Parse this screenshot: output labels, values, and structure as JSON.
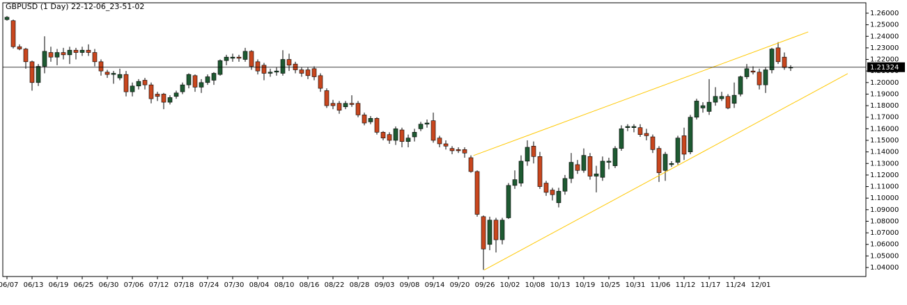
{
  "chart_data": {
    "type": "candlestick",
    "title": "GBPUSD (1 Day) 22-12-06_23-51-02",
    "categories": [
      "06/07",
      null,
      null,
      null,
      "06/13",
      null,
      null,
      null,
      "06/19",
      null,
      null,
      null,
      "06/25",
      null,
      null,
      null,
      "06/30",
      null,
      null,
      null,
      "07/06",
      null,
      null,
      null,
      "07/12",
      null,
      null,
      null,
      "07/18",
      null,
      null,
      null,
      "07/24",
      null,
      null,
      null,
      "07/30",
      null,
      null,
      null,
      "08/04",
      null,
      null,
      null,
      "08/10",
      null,
      null,
      null,
      "08/16",
      null,
      null,
      null,
      "08/22",
      null,
      null,
      null,
      "08/28",
      null,
      null,
      null,
      "09/03",
      null,
      null,
      null,
      "09/08",
      null,
      null,
      null,
      "09/14",
      null,
      null,
      null,
      "09/20",
      null,
      null,
      null,
      "09/26",
      null,
      null,
      null,
      "10/02",
      null,
      null,
      null,
      "10/08",
      null,
      null,
      null,
      "10/13",
      null,
      null,
      null,
      "10/19",
      null,
      null,
      null,
      "10/25",
      null,
      null,
      null,
      "10/31",
      null,
      null,
      null,
      "11/06",
      null,
      null,
      null,
      "11/12",
      null,
      null,
      null,
      "11/17",
      null,
      null,
      null,
      "11/24",
      null,
      null,
      null,
      "12/01",
      null,
      null,
      null,
      null,
      null
    ],
    "open": [
      1.2545,
      1.2535,
      1.231,
      1.229,
      1.218,
      1.2,
      1.214,
      1.226,
      1.222,
      1.226,
      1.224,
      1.228,
      1.226,
      1.228,
      1.226,
      1.218,
      1.209,
      1.207,
      1.204,
      1.207,
      1.192,
      1.197,
      1.202,
      1.198,
      1.19,
      1.19,
      1.183,
      1.188,
      1.192,
      1.198,
      1.206,
      1.196,
      1.2,
      1.202,
      1.207,
      1.219,
      1.221,
      1.222,
      1.22,
      1.227,
      1.218,
      1.215,
      1.208,
      1.209,
      1.208,
      1.22,
      1.216,
      1.211,
      1.211,
      1.212,
      1.206,
      1.193,
      1.182,
      1.182,
      1.179,
      1.182,
      1.182,
      1.172,
      1.166,
      1.169,
      1.157,
      1.155,
      1.15,
      1.159,
      1.149,
      1.153,
      1.16,
      1.164,
      1.167,
      1.152,
      1.147,
      1.143,
      1.142,
      1.142,
      1.135,
      1.123,
      1.084,
      1.06,
      1.081,
      1.064,
      1.083,
      1.111,
      1.113,
      1.132,
      1.145,
      1.136,
      1.113,
      1.107,
      1.096,
      1.106,
      1.117,
      1.129,
      1.124,
      1.136,
      1.119,
      1.118,
      1.131,
      1.128,
      1.143,
      1.161,
      1.161,
      1.161,
      1.156,
      1.153,
      1.143,
      1.124,
      1.129,
      1.131,
      1.154,
      1.14,
      1.17,
      1.178,
      1.175,
      1.183,
      1.186,
      1.188,
      1.182,
      1.19,
      1.205,
      1.21,
      1.209,
      1.198,
      1.211,
      1.23,
      1.222,
      1.213
    ],
    "high": [
      1.2575,
      1.2545,
      1.233,
      1.23,
      1.219,
      1.216,
      1.24,
      1.231,
      1.229,
      1.23,
      1.231,
      1.23,
      1.231,
      1.233,
      1.229,
      1.22,
      1.211,
      1.21,
      1.212,
      1.21,
      1.2,
      1.203,
      1.204,
      1.2,
      1.192,
      1.191,
      1.189,
      1.193,
      1.2,
      1.208,
      1.207,
      1.203,
      1.207,
      1.209,
      1.22,
      1.224,
      1.225,
      1.224,
      1.23,
      1.228,
      1.22,
      1.217,
      1.212,
      1.213,
      1.228,
      1.225,
      1.218,
      1.213,
      1.213,
      1.214,
      1.208,
      1.195,
      1.185,
      1.184,
      1.184,
      1.189,
      1.184,
      1.174,
      1.171,
      1.17,
      1.158,
      1.157,
      1.162,
      1.161,
      1.155,
      1.16,
      1.166,
      1.168,
      1.174,
      1.154,
      1.15,
      1.145,
      1.144,
      1.144,
      1.137,
      1.124,
      1.085,
      1.084,
      1.083,
      1.083,
      1.113,
      1.124,
      1.137,
      1.15,
      1.149,
      1.14,
      1.115,
      1.109,
      1.109,
      1.12,
      1.139,
      1.133,
      1.143,
      1.139,
      1.128,
      1.136,
      1.135,
      1.145,
      1.163,
      1.164,
      1.164,
      1.164,
      1.16,
      1.155,
      1.145,
      1.14,
      1.132,
      1.154,
      1.161,
      1.172,
      1.186,
      1.183,
      1.203,
      1.196,
      1.192,
      1.19,
      1.2,
      1.206,
      1.216,
      1.214,
      1.212,
      1.213,
      1.23,
      1.235,
      1.226,
      1.215
    ],
    "low": [
      1.2535,
      1.2295,
      1.228,
      1.212,
      1.193,
      1.197,
      1.208,
      1.218,
      1.215,
      1.22,
      1.216,
      1.22,
      1.223,
      1.223,
      1.214,
      1.206,
      1.204,
      1.199,
      1.202,
      1.188,
      1.188,
      1.194,
      1.194,
      1.182,
      1.184,
      1.177,
      1.181,
      1.186,
      1.19,
      1.195,
      1.192,
      1.191,
      1.198,
      1.198,
      1.206,
      1.215,
      1.218,
      1.218,
      1.218,
      1.211,
      1.207,
      1.202,
      1.205,
      1.206,
      1.206,
      1.21,
      1.208,
      1.205,
      1.203,
      1.202,
      1.192,
      1.178,
      1.177,
      1.173,
      1.177,
      1.179,
      1.17,
      1.163,
      1.164,
      1.155,
      1.15,
      1.147,
      1.146,
      1.144,
      1.144,
      1.149,
      1.158,
      1.161,
      1.148,
      1.144,
      1.142,
      1.138,
      1.139,
      1.135,
      1.122,
      1.084,
      1.038,
      1.055,
      1.053,
      1.06,
      1.082,
      1.108,
      1.11,
      1.128,
      1.13,
      1.108,
      1.102,
      1.098,
      1.092,
      1.103,
      1.113,
      1.121,
      1.122,
      1.116,
      1.105,
      1.115,
      1.125,
      1.126,
      1.141,
      1.158,
      1.157,
      1.153,
      1.15,
      1.139,
      1.114,
      1.115,
      1.127,
      1.129,
      1.133,
      1.138,
      1.168,
      1.174,
      1.172,
      1.18,
      1.184,
      1.177,
      1.178,
      1.188,
      1.203,
      1.207,
      1.194,
      1.191,
      1.208,
      1.216,
      1.211,
      1.21
    ],
    "close": [
      1.2565,
      1.231,
      1.229,
      1.218,
      1.2,
      1.214,
      1.227,
      1.222,
      1.226,
      1.224,
      1.228,
      1.226,
      1.228,
      1.226,
      1.218,
      1.21,
      1.207,
      1.208,
      1.207,
      1.192,
      1.197,
      1.201,
      1.198,
      1.186,
      1.188,
      1.183,
      1.187,
      1.191,
      1.198,
      1.207,
      1.196,
      1.2,
      1.205,
      1.208,
      1.219,
      1.222,
      1.222,
      1.221,
      1.227,
      1.214,
      1.21,
      1.208,
      1.209,
      1.21,
      1.22,
      1.215,
      1.211,
      1.208,
      1.206,
      1.205,
      1.195,
      1.18,
      1.18,
      1.176,
      1.182,
      1.181,
      1.172,
      1.165,
      1.169,
      1.157,
      1.152,
      1.15,
      1.16,
      1.149,
      1.152,
      1.157,
      1.164,
      1.165,
      1.15,
      1.147,
      1.145,
      1.141,
      1.141,
      1.139,
      1.123,
      1.086,
      1.056,
      1.081,
      1.064,
      1.081,
      1.111,
      1.116,
      1.132,
      1.144,
      1.136,
      1.11,
      1.105,
      1.103,
      1.106,
      1.117,
      1.131,
      1.124,
      1.137,
      1.119,
      1.121,
      1.132,
      1.132,
      1.143,
      1.16,
      1.162,
      1.162,
      1.155,
      1.154,
      1.142,
      1.122,
      1.138,
      1.13,
      1.152,
      1.138,
      1.17,
      1.184,
      1.18,
      1.183,
      1.188,
      1.188,
      1.178,
      1.189,
      1.205,
      1.212,
      1.209,
      1.198,
      1.211,
      1.229,
      1.218,
      1.213,
      1.2132
    ],
    "up_color": "#1e5a32",
    "down_color": "#c8461e",
    "ylim": [
      1.0322,
      1.269
    ],
    "yticks": [
      {
        "value": 1.04,
        "label": "1.04000"
      },
      {
        "value": 1.05,
        "label": "1.05000"
      },
      {
        "value": 1.06,
        "label": "1.06000"
      },
      {
        "value": 1.07,
        "label": "1.07000"
      },
      {
        "value": 1.08,
        "label": "1.08000"
      },
      {
        "value": 1.09,
        "label": "1.09000"
      },
      {
        "value": 1.1,
        "label": "1.10000"
      },
      {
        "value": 1.11,
        "label": "1.11000"
      },
      {
        "value": 1.12,
        "label": "1.12000"
      },
      {
        "value": 1.13,
        "label": "1.13000"
      },
      {
        "value": 1.14,
        "label": "1.14000"
      },
      {
        "value": 1.15,
        "label": "1.15000"
      },
      {
        "value": 1.16,
        "label": "1.16000"
      },
      {
        "value": 1.17,
        "label": "1.17000"
      },
      {
        "value": 1.18,
        "label": "1.18000"
      },
      {
        "value": 1.19,
        "label": "1.19000"
      },
      {
        "value": 1.2,
        "label": "1.20000"
      },
      {
        "value": 1.21,
        "label": "1.21000"
      },
      {
        "value": 1.22,
        "label": "1.22000"
      },
      {
        "value": 1.23,
        "label": "1.23000"
      },
      {
        "value": 1.24,
        "label": "1.24000"
      },
      {
        "value": 1.25,
        "label": "1.25000"
      },
      {
        "value": 1.26,
        "label": "1.26000"
      }
    ],
    "last_price": 1.21324,
    "trendlines": [
      {
        "color": "#ffc800",
        "x": [
          74.4,
          127.8
        ],
        "y": [
          1.1368,
          1.2438
        ]
      },
      {
        "color": "#ffc800",
        "x": [
          76.1,
          134.1
        ],
        "y": [
          1.0378,
          1.2077
        ]
      }
    ]
  }
}
